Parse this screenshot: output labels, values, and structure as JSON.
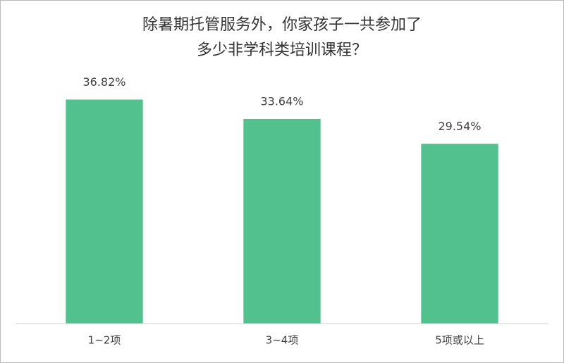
{
  "chart_data": {
    "type": "bar",
    "title": [
      "除暑期托管服务外，你家孩子一共参加了",
      "多少非学科类培训课程？"
    ],
    "categories": [
      "1~2项",
      "3~4项",
      "5项或以上"
    ],
    "values": [
      36.82,
      33.64,
      29.54
    ],
    "value_labels": [
      "36.82%",
      "33.64%",
      "29.54%"
    ],
    "color": "#52c18e",
    "ylim": [
      0,
      40
    ]
  }
}
